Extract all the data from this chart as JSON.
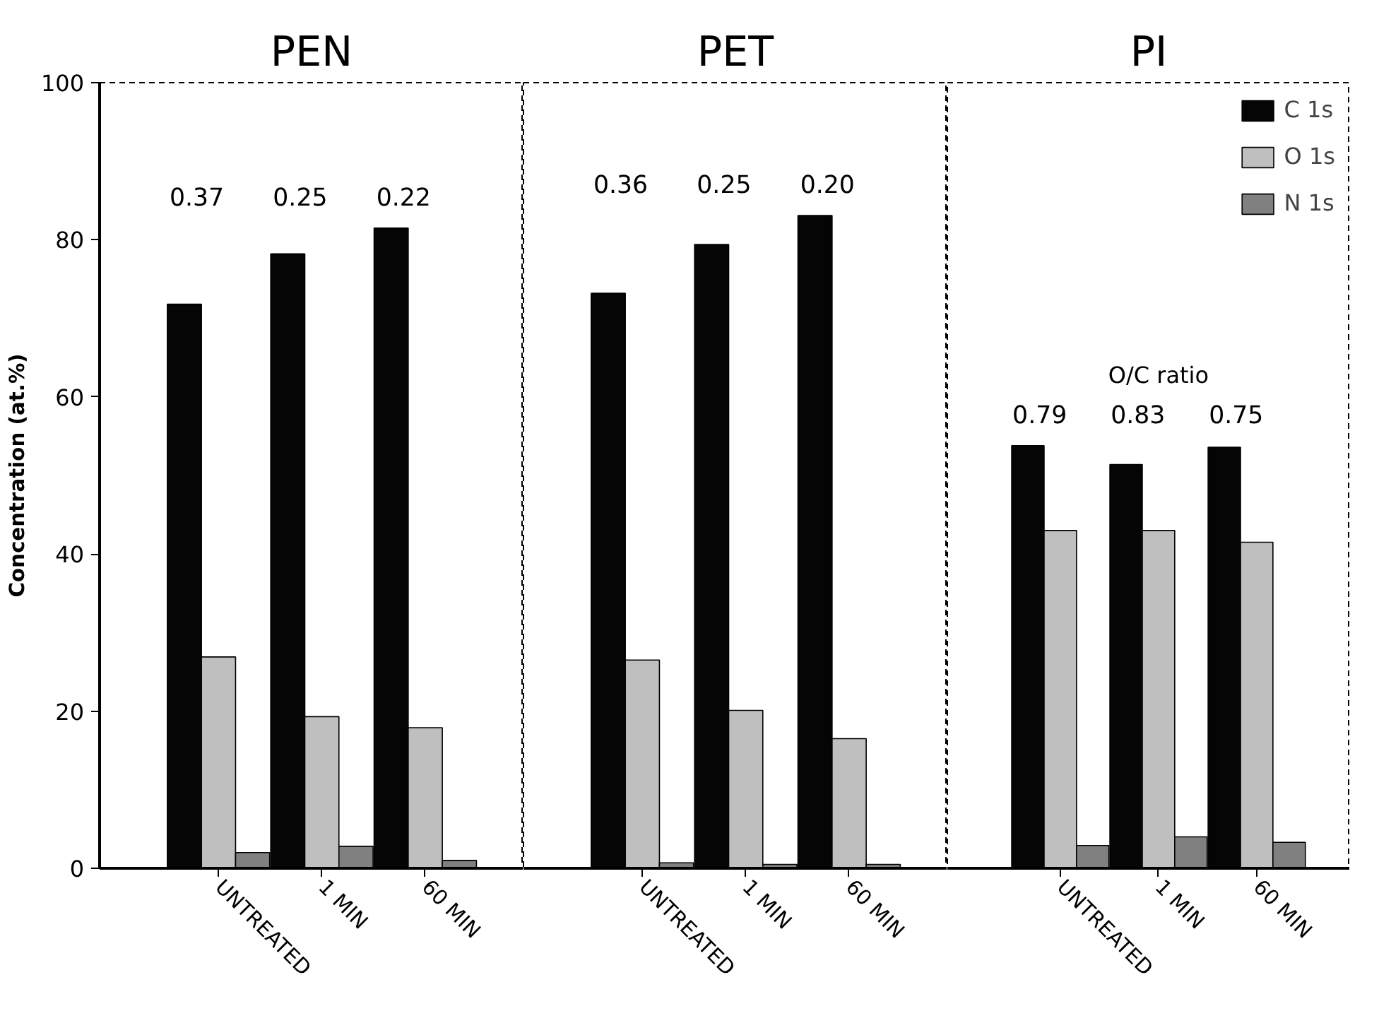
{
  "chart_data": [
    {
      "type": "bar",
      "title": "PEN",
      "ylabel": "Concentration (at.%)",
      "categories": [
        "UNTREATED",
        "1 MIN",
        "60 MIN"
      ],
      "ylim": [
        0,
        100
      ],
      "yticks": [
        0,
        20,
        40,
        60,
        80,
        100
      ],
      "grid": false,
      "legend": false,
      "series": [
        {
          "color": "#050505",
          "values": [
            71.8,
            78.2,
            81.5
          ]
        },
        {
          "color": "#bfbfbf",
          "values": [
            26.9,
            19.3,
            17.9
          ]
        },
        {
          "color": "#808080",
          "values": [
            2.0,
            2.8,
            1.0
          ]
        }
      ],
      "annotations": [
        "0.37",
        "0.25",
        "0.22"
      ]
    },
    {
      "type": "bar",
      "title": "PET",
      "categories": [
        "UNTREATED",
        "1 MIN",
        "60 MIN"
      ],
      "ylim": [
        0,
        100
      ],
      "yticks": [
        0,
        20,
        40,
        60,
        80,
        100
      ],
      "grid": false,
      "legend": false,
      "tick_labels": "x",
      "series": [
        {
          "color": "#050505",
          "values": [
            73.2,
            79.4,
            83.1
          ]
        },
        {
          "color": "#bfbfbf",
          "values": [
            26.5,
            20.1,
            16.5
          ]
        },
        {
          "color": "#808080",
          "values": [
            0.7,
            0.5,
            0.5
          ]
        }
      ],
      "annotations": [
        "0.36",
        "0.25",
        "0.20"
      ]
    },
    {
      "type": "bar",
      "title": "PI",
      "categories": [
        "UNTREATED",
        "1 MIN",
        "60 MIN"
      ],
      "ylim": [
        0,
        100
      ],
      "yticks": [
        0,
        20,
        40,
        60,
        80,
        100
      ],
      "grid": false,
      "legend": "top right",
      "tick_labels": "x",
      "series": [
        {
          "name": "C 1s",
          "color": "#050505",
          "values": [
            53.8,
            51.4,
            53.6
          ]
        },
        {
          "name": "O 1s",
          "color": "#bfbfbf",
          "values": [
            43.0,
            43.0,
            41.5
          ]
        },
        {
          "name": "N 1s",
          "color": "#808080",
          "values": [
            2.9,
            4.0,
            3.3
          ]
        }
      ],
      "annotations": [
        "O/C ratio",
        "0.79",
        "0.83",
        "0.75"
      ]
    }
  ]
}
